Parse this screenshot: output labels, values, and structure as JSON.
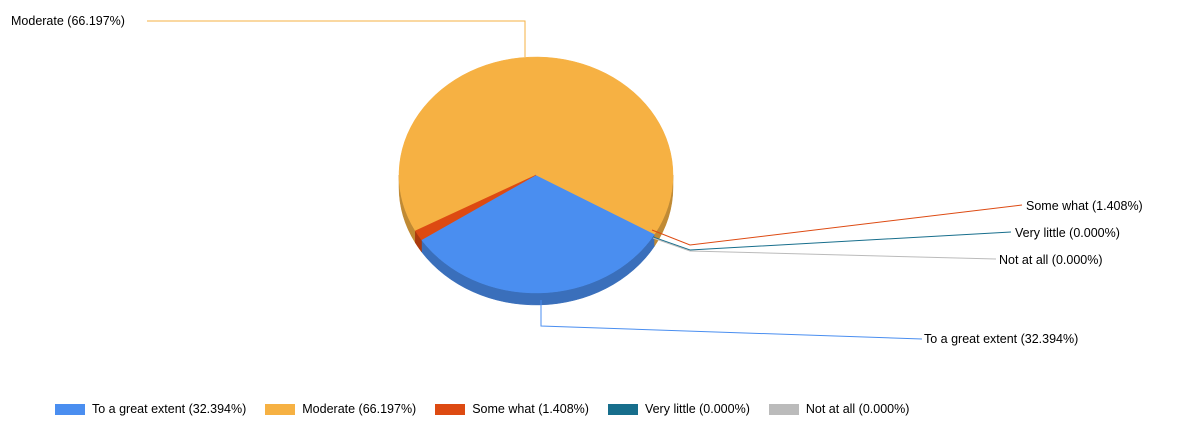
{
  "chart_data": {
    "type": "pie",
    "style": "3d-pie",
    "series": [
      {
        "name": "To a great extent",
        "label": "To a great extent (32.394%)",
        "legend_label": "To a great extent (32.394%)",
        "value": 32.394,
        "color": "#4a8ef0"
      },
      {
        "name": "Moderate",
        "label": "Moderate (66.197%)",
        "legend_label": "Moderate (66.197%)",
        "value": 66.197,
        "color": "#f6b143"
      },
      {
        "name": "Some what",
        "label": "Some what (1.408%)",
        "legend_label": "Some what (1.408%)",
        "value": 1.408,
        "color": "#dd4a12"
      },
      {
        "name": "Very little",
        "label": "Very little (0.000%)",
        "legend_label": "Very little (0.000%)",
        "value": 0.0,
        "color": "#176e8c"
      },
      {
        "name": "Not at all",
        "label": "Not at all (0.000%)",
        "legend_label": "Not at all (0.000%)",
        "value": 0.0,
        "color": "#bbbbbb"
      }
    ],
    "legend_position": "bottom",
    "title": ""
  }
}
